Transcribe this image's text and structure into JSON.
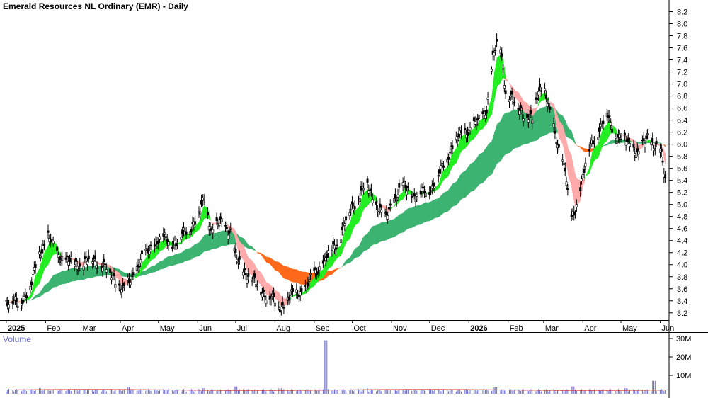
{
  "chart_data": {
    "type": "candlestick",
    "title": "Emerald Resources NL Ordinary (EMR) - Daily",
    "volume_label": "Volume",
    "price_axis": {
      "ticks": [
        3.2,
        3.4,
        3.6,
        3.8,
        4.0,
        4.2,
        4.4,
        4.6,
        4.8,
        5.0,
        5.2,
        5.4,
        5.6,
        5.8,
        6.0,
        6.2,
        6.4,
        6.6,
        6.8,
        7.0,
        7.2,
        7.4,
        7.6,
        7.8,
        8.0,
        8.2
      ],
      "ylim": [
        3.08,
        8.3
      ]
    },
    "volume_axis": {
      "ticks": [
        {
          "value": 10000000,
          "label": "10M"
        },
        {
          "value": 20000000,
          "label": "20M"
        },
        {
          "value": 30000000,
          "label": "30M"
        }
      ],
      "ylim": [
        0,
        30000000
      ]
    },
    "xlim": [
      "2024-12-27",
      "2026-06-08"
    ],
    "months": [
      {
        "date": "2025-01-01",
        "label": "2025",
        "bold": true
      },
      {
        "date": "2025-02-01",
        "label": "Feb"
      },
      {
        "date": "2025-03-01",
        "label": "Mar"
      },
      {
        "date": "2025-04-01",
        "label": "Apr"
      },
      {
        "date": "2025-05-01",
        "label": "May"
      },
      {
        "date": "2025-06-01",
        "label": "Jun"
      },
      {
        "date": "2025-07-01",
        "label": "Jul"
      },
      {
        "date": "2025-08-01",
        "label": "Aug"
      },
      {
        "date": "2025-09-01",
        "label": "Sep"
      },
      {
        "date": "2025-10-01",
        "label": "Oct"
      },
      {
        "date": "2025-11-01",
        "label": "Nov"
      },
      {
        "date": "2025-12-01",
        "label": "Dec"
      },
      {
        "date": "2026-01-01",
        "label": "2026",
        "bold": true
      },
      {
        "date": "2026-02-01",
        "label": "Feb"
      },
      {
        "date": "2026-03-01",
        "label": "Mar"
      },
      {
        "date": "2026-04-01",
        "label": "Apr"
      },
      {
        "date": "2026-05-01",
        "label": "May"
      },
      {
        "date": "2026-06-01",
        "label": "Jun"
      }
    ],
    "close": [
      [
        "2025-01-01",
        3.4
      ],
      [
        "2025-01-10",
        3.35
      ],
      [
        "2025-01-20",
        3.6
      ],
      [
        "2025-01-27",
        4.2
      ],
      [
        "2025-02-03",
        4.45
      ],
      [
        "2025-02-10",
        4.2
      ],
      [
        "2025-02-17",
        4.05
      ],
      [
        "2025-03-01",
        4.0
      ],
      [
        "2025-03-10",
        4.1
      ],
      [
        "2025-03-20",
        3.95
      ],
      [
        "2025-03-27",
        3.8
      ],
      [
        "2025-04-03",
        3.55
      ],
      [
        "2025-04-10",
        3.8
      ],
      [
        "2025-04-17",
        4.05
      ],
      [
        "2025-04-25",
        4.3
      ],
      [
        "2025-05-05",
        4.45
      ],
      [
        "2025-05-15",
        4.35
      ],
      [
        "2025-05-22",
        4.55
      ],
      [
        "2025-06-01",
        4.75
      ],
      [
        "2025-06-06",
        5.1
      ],
      [
        "2025-06-12",
        4.55
      ],
      [
        "2025-06-20",
        4.7
      ],
      [
        "2025-06-27",
        4.55
      ],
      [
        "2025-07-01",
        4.1
      ],
      [
        "2025-07-10",
        3.85
      ],
      [
        "2025-07-20",
        3.6
      ],
      [
        "2025-07-28",
        3.45
      ],
      [
        "2025-08-05",
        3.3
      ],
      [
        "2025-08-15",
        3.5
      ],
      [
        "2025-08-25",
        3.6
      ],
      [
        "2025-09-01",
        3.85
      ],
      [
        "2025-09-10",
        4.1
      ],
      [
        "2025-09-20",
        4.4
      ],
      [
        "2025-09-27",
        4.8
      ],
      [
        "2025-10-05",
        5.1
      ],
      [
        "2025-10-12",
        5.35
      ],
      [
        "2025-10-20",
        5.0
      ],
      [
        "2025-10-27",
        4.75
      ],
      [
        "2025-11-03",
        5.1
      ],
      [
        "2025-11-10",
        5.3
      ],
      [
        "2025-11-20",
        5.15
      ],
      [
        "2025-11-27",
        5.2
      ],
      [
        "2025-12-03",
        5.3
      ],
      [
        "2025-12-10",
        5.55
      ],
      [
        "2025-12-18",
        5.95
      ],
      [
        "2025-12-28",
        6.2
      ],
      [
        "2026-01-08",
        6.35
      ],
      [
        "2026-01-15",
        6.6
      ],
      [
        "2026-01-20",
        7.4
      ],
      [
        "2026-01-25",
        7.8
      ],
      [
        "2026-01-30",
        6.9
      ],
      [
        "2026-02-05",
        6.7
      ],
      [
        "2026-02-12",
        6.55
      ],
      [
        "2026-02-20",
        6.4
      ],
      [
        "2026-02-25",
        6.9
      ],
      [
        "2026-03-01",
        7.0
      ],
      [
        "2026-03-06",
        6.5
      ],
      [
        "2026-03-12",
        6.0
      ],
      [
        "2026-03-18",
        5.6
      ],
      [
        "2026-03-22",
        4.7
      ],
      [
        "2026-03-26",
        4.9
      ],
      [
        "2026-04-01",
        5.5
      ],
      [
        "2026-04-06",
        5.9
      ],
      [
        "2026-04-10",
        6.1
      ],
      [
        "2026-04-15",
        6.3
      ],
      [
        "2026-04-20",
        6.5
      ],
      [
        "2026-04-25",
        6.2
      ],
      [
        "2026-05-01",
        6.1
      ],
      [
        "2026-05-08",
        6.0
      ],
      [
        "2026-05-15",
        5.85
      ],
      [
        "2026-05-22",
        6.1
      ],
      [
        "2026-05-28",
        6.0
      ],
      [
        "2026-06-01",
        5.9
      ],
      [
        "2026-06-05",
        5.4
      ]
    ],
    "volume_spikes": [
      [
        "2025-01-27",
        3000000
      ],
      [
        "2025-04-07",
        3500000
      ],
      [
        "2025-06-06",
        3000000
      ],
      [
        "2025-07-01",
        4000000
      ],
      [
        "2025-08-05",
        3000000
      ],
      [
        "2025-09-10",
        29000000
      ],
      [
        "2025-10-12",
        3000000
      ],
      [
        "2026-01-22",
        3500000
      ],
      [
        "2026-03-24",
        4000000
      ],
      [
        "2026-05-05",
        3000000
      ],
      [
        "2026-05-27",
        7000000
      ]
    ],
    "colors": {
      "candle": "#000000",
      "band_long": "#3cb371",
      "band_long_down": "#ff6a1a",
      "band_short_up": "#22ee22",
      "band_short_down": "#ffaaaa",
      "band_short_down_dark": "#ff6a1a",
      "volume_bar": "#6a6ad0",
      "volume_avg": "#d40000",
      "axis_text": "#000000",
      "volume_label": "#6a6ad0"
    }
  }
}
